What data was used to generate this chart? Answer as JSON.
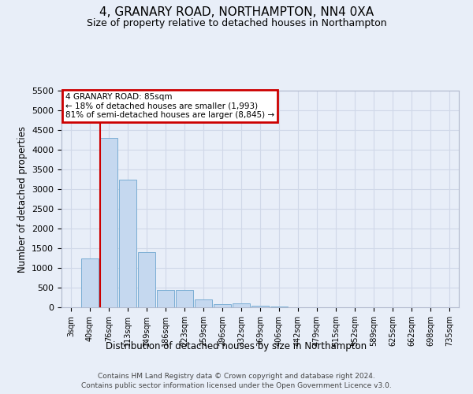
{
  "title": "4, GRANARY ROAD, NORTHAMPTON, NN4 0XA",
  "subtitle": "Size of property relative to detached houses in Northampton",
  "xlabel": "Distribution of detached houses by size in Northampton",
  "ylabel": "Number of detached properties",
  "bar_labels": [
    "3sqm",
    "40sqm",
    "76sqm",
    "113sqm",
    "149sqm",
    "186sqm",
    "223sqm",
    "259sqm",
    "296sqm",
    "332sqm",
    "369sqm",
    "406sqm",
    "442sqm",
    "479sqm",
    "515sqm",
    "552sqm",
    "589sqm",
    "625sqm",
    "662sqm",
    "698sqm",
    "735sqm"
  ],
  "bar_values": [
    0,
    1250,
    4300,
    3250,
    1400,
    450,
    450,
    200,
    75,
    100,
    50,
    30,
    10,
    5,
    0,
    0,
    0,
    0,
    0,
    0,
    0
  ],
  "bar_color": "#c5d8ef",
  "bar_edge_color": "#7aadd4",
  "grid_color": "#d0d8e8",
  "background_color": "#e8eef8",
  "red_line_bar_index": 2,
  "annotation_line1": "4 GRANARY ROAD: 85sqm",
  "annotation_line2": "← 18% of detached houses are smaller (1,993)",
  "annotation_line3": "81% of semi-detached houses are larger (8,845) →",
  "annotation_box_facecolor": "#ffffff",
  "annotation_box_edgecolor": "#cc0000",
  "ylim": [
    0,
    5500
  ],
  "yticks": [
    0,
    500,
    1000,
    1500,
    2000,
    2500,
    3000,
    3500,
    4000,
    4500,
    5000,
    5500
  ],
  "footer_line1": "Contains HM Land Registry data © Crown copyright and database right 2024.",
  "footer_line2": "Contains public sector information licensed under the Open Government Licence v3.0.",
  "title_fontsize": 11,
  "subtitle_fontsize": 9,
  "bar_width": 0.9
}
